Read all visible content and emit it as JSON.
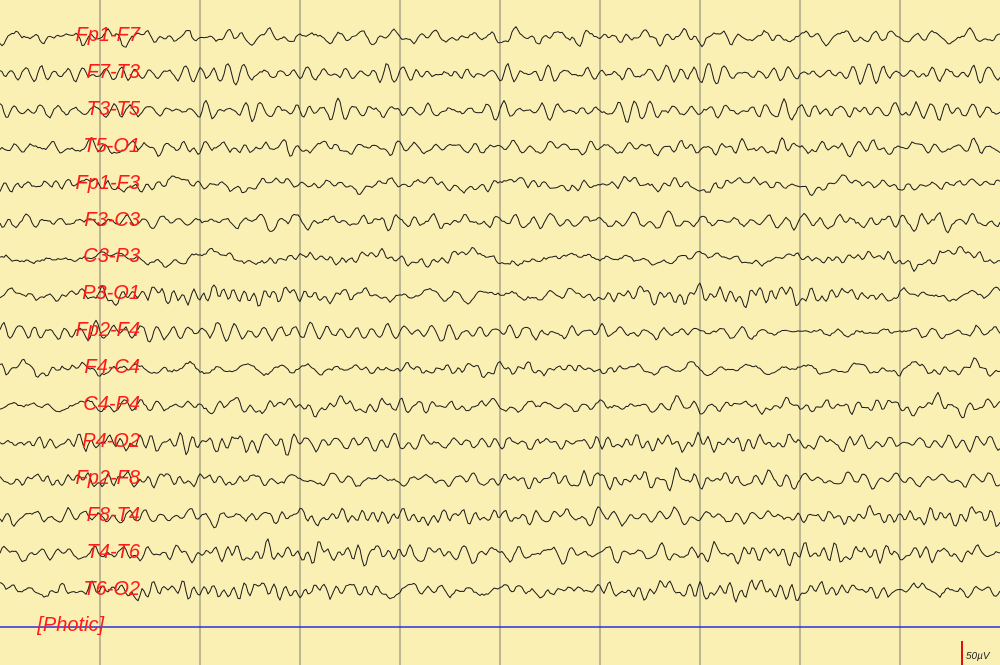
{
  "channels": [
    {
      "label": "Fp1-F7",
      "seed": 11,
      "alpha": 0.35
    },
    {
      "label": "F7-T3",
      "seed": 23,
      "alpha": 0.35
    },
    {
      "label": "T3-T5",
      "seed": 37,
      "alpha": 0.4
    },
    {
      "label": "T5-O1",
      "seed": 41,
      "alpha": 0.45
    },
    {
      "label": "Fp1-F3",
      "seed": 53,
      "alpha": 0.35
    },
    {
      "label": "F3-C3",
      "seed": 67,
      "alpha": 0.4
    },
    {
      "label": "C3-P3",
      "seed": 71,
      "alpha": 0.5
    },
    {
      "label": "P3-O1",
      "seed": 83,
      "alpha": 0.95
    },
    {
      "label": "Fp2-F4",
      "seed": 97,
      "alpha": 0.35
    },
    {
      "label": "F4-C4",
      "seed": 101,
      "alpha": 0.55
    },
    {
      "label": "C4-P4",
      "seed": 113,
      "alpha": 0.55
    },
    {
      "label": "P4-O2",
      "seed": 127,
      "alpha": 0.85
    },
    {
      "label": "Fp2-F8",
      "seed": 131,
      "alpha": 0.7
    },
    {
      "label": "F8-T4",
      "seed": 149,
      "alpha": 0.8
    },
    {
      "label": "T4-T6",
      "seed": 157,
      "alpha": 0.9
    },
    {
      "label": "T6-O2",
      "seed": 163,
      "alpha": 0.95
    }
  ],
  "photic": {
    "label": "[Photic]"
  },
  "scale": {
    "label": "50µV"
  },
  "colors": {
    "background": "#fbf0b4",
    "grid": "#7d7d72",
    "trace": "#1a1a1a",
    "label": "#ff1a1a",
    "photic_line": "#2a2ad8",
    "scale_bar": "#e01010"
  }
}
